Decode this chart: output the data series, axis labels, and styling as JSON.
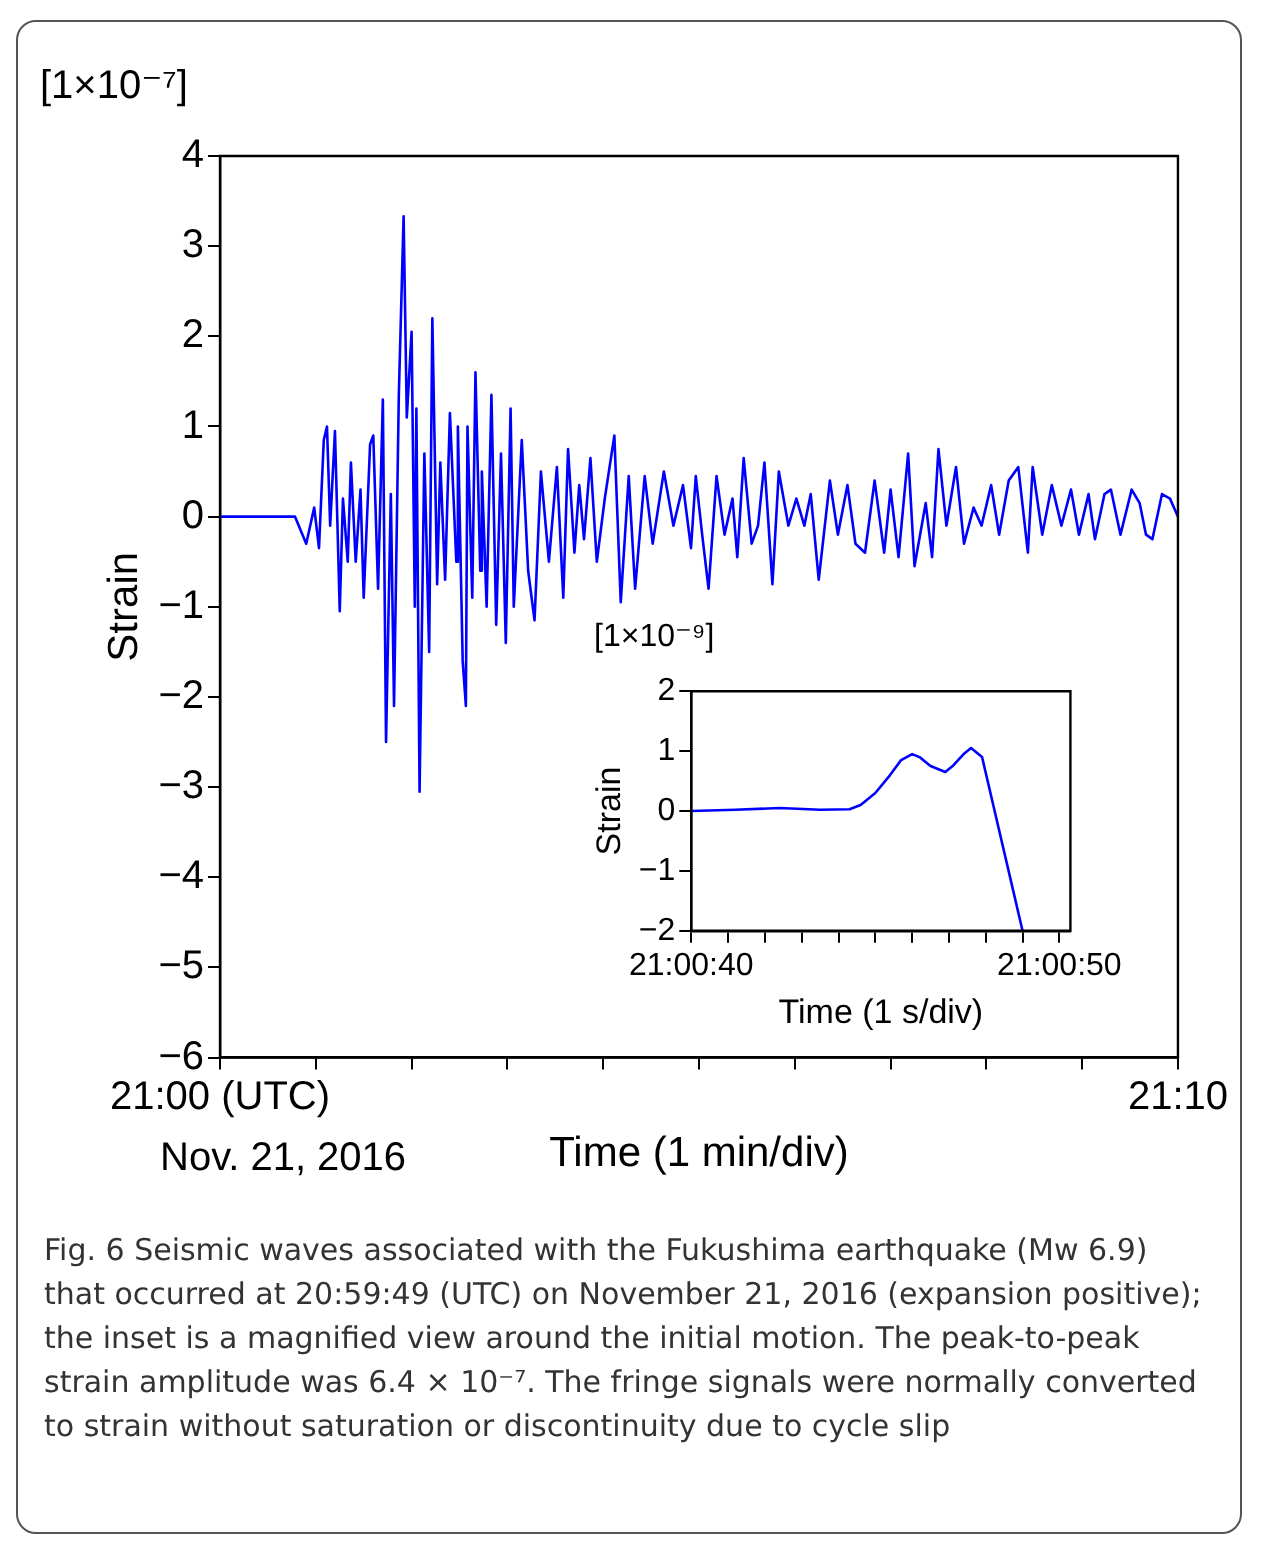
{
  "chart_data": [
    {
      "type": "line",
      "xlabel": "Time (1 min/div)",
      "ylabel": "Strain",
      "color": "#0000ff",
      "marker": "none",
      "annotations": [
        "[1×10⁻⁷]",
        "Nov. 21, 2016",
        "Fig. 6  Seismic waves associated with the Fukushima earthquake (Mw 6.9) that occurred at 20:59:49 (UTC) on November 21, 2016 (expansion positive); the inset is a magnified view around the initial motion. The peak-to-peak strain amplitude was 6.4 × 10⁻⁷. The fringe signals were normally converted to strain without saturation or discontinuity due to cycle slip"
      ],
      "xlim": [
        "2016-11-21T21:00",
        "2016-11-21T21:10"
      ],
      "xticks": [
        {
          "value": "2016-11-21T21:00",
          "label": "21:00 (UTC)"
        },
        {
          "value": "2016-11-21T21:01",
          "label": null
        },
        {
          "value": "2016-11-21T21:02",
          "label": null
        },
        {
          "value": "2016-11-21T21:03",
          "label": null
        },
        {
          "value": "2016-11-21T21:04",
          "label": null
        },
        {
          "value": "2016-11-21T21:05",
          "label": null
        },
        {
          "value": "2016-11-21T21:06",
          "label": null
        },
        {
          "value": "2016-11-21T21:07",
          "label": null
        },
        {
          "value": "2016-11-21T21:08",
          "label": null
        },
        {
          "value": "2016-11-21T21:09",
          "label": null
        },
        {
          "value": "2016-11-21T21:10",
          "label": "21:10"
        }
      ],
      "ylim": [
        -6,
        4
      ],
      "yticks": [
        -6,
        -5,
        -4,
        -3,
        -2,
        -1,
        0,
        1,
        2,
        3,
        4
      ],
      "x": [
        "2016-11-21T21:00:00",
        "2016-11-21T21:00:47",
        "2016-11-21T21:00:54",
        "2016-11-21T21:00:59",
        "2016-11-21T21:01:02",
        "2016-11-21T21:01:05",
        "2016-11-21T21:01:07",
        "2016-11-21T21:01:09",
        "2016-11-21T21:01:12",
        "2016-11-21T21:01:15",
        "2016-11-21T21:01:17",
        "2016-11-21T21:01:20",
        "2016-11-21T21:01:22",
        "2016-11-21T21:01:25",
        "2016-11-21T21:01:28",
        "2016-11-21T21:01:30",
        "2016-11-21T21:01:34",
        "2016-11-21T21:01:36",
        "2016-11-21T21:01:39",
        "2016-11-21T21:01:42",
        "2016-11-21T21:01:44",
        "2016-11-21T21:01:47",
        "2016-11-21T21:01:49",
        "2016-11-21T21:01:52",
        "2016-11-21T21:01:55",
        "2016-11-21T21:01:57",
        "2016-11-21T21:02:00",
        "2016-11-21T21:02:02",
        "2016-11-21T21:02:03",
        "2016-11-21T21:02:05",
        "2016-11-21T21:02:08",
        "2016-11-21T21:02:11",
        "2016-11-21T21:02:13",
        "2016-11-21T21:02:16",
        "2016-11-21T21:02:18",
        "2016-11-21T21:02:21",
        "2016-11-21T21:02:24",
        "2016-11-21T21:02:28",
        "2016-11-21T21:02:29",
        "2016-11-21T21:02:32",
        "2016-11-21T21:02:34",
        "2016-11-21T21:02:35",
        "2016-11-21T21:02:38",
        "2016-11-21T21:02:40",
        "2016-11-21T21:02:43",
        "2016-11-21T21:02:44",
        "2016-11-21T21:02:47",
        "2016-11-21T21:02:50",
        "2016-11-21T21:02:53",
        "2016-11-21T21:02:56",
        "2016-11-21T21:02:59",
        "2016-11-21T21:03:02",
        "2016-11-21T21:03:04",
        "2016-11-21T21:03:09",
        "2016-11-21T21:03:13",
        "2016-11-21T21:03:17",
        "2016-11-21T21:03:21",
        "2016-11-21T21:03:26",
        "2016-11-21T21:03:31",
        "2016-11-21T21:03:35",
        "2016-11-21T21:03:38",
        "2016-11-21T21:03:42",
        "2016-11-21T21:03:45",
        "2016-11-21T21:03:48",
        "2016-11-21T21:03:52",
        "2016-11-21T21:03:56",
        "2016-11-21T21:04:01",
        "2016-11-21T21:04:07",
        "2016-11-21T21:04:11",
        "2016-11-21T21:04:16",
        "2016-11-21T21:04:20",
        "2016-11-21T21:04:26",
        "2016-11-21T21:04:31",
        "2016-11-21T21:04:38",
        "2016-11-21T21:04:44",
        "2016-11-21T21:04:50",
        "2016-11-21T21:04:55",
        "2016-11-21T21:04:58",
        "2016-11-21T21:05:02",
        "2016-11-21T21:05:06",
        "2016-11-21T21:05:11",
        "2016-11-21T21:05:16",
        "2016-11-21T21:05:21",
        "2016-11-21T21:05:24",
        "2016-11-21T21:05:28",
        "2016-11-21T21:05:33",
        "2016-11-21T21:05:37",
        "2016-11-21T21:05:41",
        "2016-11-21T21:05:46",
        "2016-11-21T21:05:50",
        "2016-11-21T21:05:56",
        "2016-11-21T21:06:01",
        "2016-11-21T21:06:06",
        "2016-11-21T21:06:10",
        "2016-11-21T21:06:15",
        "2016-11-21T21:06:22",
        "2016-11-21T21:06:27",
        "2016-11-21T21:06:33",
        "2016-11-21T21:06:38",
        "2016-11-21T21:06:44",
        "2016-11-21T21:06:50",
        "2016-11-21T21:06:56",
        "2016-11-21T21:07:00",
        "2016-11-21T21:07:05",
        "2016-11-21T21:07:11",
        "2016-11-21T21:07:15",
        "2016-11-21T21:07:22",
        "2016-11-21T21:07:26",
        "2016-11-21T21:07:30",
        "2016-11-21T21:07:35",
        "2016-11-21T21:07:41",
        "2016-11-21T21:07:46",
        "2016-11-21T21:07:52",
        "2016-11-21T21:07:57",
        "2016-11-21T21:08:03",
        "2016-11-21T21:08:08",
        "2016-11-21T21:08:14",
        "2016-11-21T21:08:20",
        "2016-11-21T21:08:26",
        "2016-11-21T21:08:29",
        "2016-11-21T21:08:35",
        "2016-11-21T21:08:41",
        "2016-11-21T21:08:47",
        "2016-11-21T21:08:53",
        "2016-11-21T21:08:58",
        "2016-11-21T21:09:04",
        "2016-11-21T21:09:08",
        "2016-11-21T21:09:14",
        "2016-11-21T21:09:18",
        "2016-11-21T21:09:24",
        "2016-11-21T21:09:31",
        "2016-11-21T21:09:36",
        "2016-11-21T21:09:40",
        "2016-11-21T21:09:44",
        "2016-11-21T21:09:50",
        "2016-11-21T21:09:55",
        "2016-11-21T21:10:00"
      ],
      "values": [
        0,
        0,
        -0.3,
        0.1,
        -0.35,
        0.85,
        1.0,
        -0.1,
        0.95,
        -1.05,
        0.2,
        -0.5,
        0.6,
        -0.5,
        0.3,
        -0.9,
        0.8,
        0.9,
        -0.8,
        1.3,
        -2.5,
        0.25,
        -2.1,
        1.35,
        3.33,
        1.1,
        2.05,
        -1.0,
        1.2,
        -3.05,
        0.7,
        -1.5,
        2.2,
        -0.75,
        0.6,
        -0.7,
        1.15,
        -0.5,
        1.0,
        -1.6,
        -2.1,
        1.0,
        -0.9,
        1.6,
        -0.6,
        0.5,
        -1.0,
        1.35,
        -1.2,
        0.7,
        -1.4,
        1.2,
        -1.0,
        0.85,
        -0.6,
        -1.15,
        0.5,
        -0.5,
        0.55,
        -0.9,
        0.75,
        -0.4,
        0.35,
        -0.25,
        0.65,
        -0.5,
        0.2,
        0.9,
        -0.95,
        0.45,
        -0.8,
        0.45,
        -0.3,
        0.5,
        -0.1,
        0.35,
        -0.35,
        0.45,
        -0.2,
        -0.8,
        0.45,
        -0.2,
        0.2,
        -0.45,
        0.65,
        -0.3,
        -0.1,
        0.6,
        -0.75,
        0.5,
        -0.1,
        0.2,
        -0.1,
        0.25,
        -0.7,
        0.4,
        -0.2,
        0.35,
        -0.3,
        -0.4,
        0.4,
        -0.4,
        0.3,
        -0.45,
        0.7,
        -0.55,
        0.15,
        -0.45,
        0.75,
        -0.1,
        0.55,
        -0.3,
        0.1,
        -0.1,
        0.35,
        -0.2,
        0.4,
        0.55,
        -0.4,
        0.55,
        -0.2,
        0.35,
        -0.1,
        0.3,
        -0.2,
        0.25,
        -0.25,
        0.25,
        0.3,
        -0.2,
        0.3,
        0.15,
        -0.2,
        -0.25,
        0.25,
        0.2,
        0.0
      ]
    },
    {
      "type": "line",
      "xlabel": "Time (1 s/div)",
      "ylabel": "Strain",
      "color": "#0000ff",
      "marker": "none",
      "annotations": [
        "[1×10⁻⁹]"
      ],
      "xlim": [
        "2016-11-21T21:00:40",
        "2016-11-21T21:00:50.3"
      ],
      "xticks": [
        {
          "value": "2016-11-21T21:00:40",
          "label": "21:00:40"
        },
        {
          "value": "2016-11-21T21:00:41",
          "label": null
        },
        {
          "value": "2016-11-21T21:00:42",
          "label": null
        },
        {
          "value": "2016-11-21T21:00:43",
          "label": null
        },
        {
          "value": "2016-11-21T21:00:44",
          "label": null
        },
        {
          "value": "2016-11-21T21:00:45",
          "label": null
        },
        {
          "value": "2016-11-21T21:00:46",
          "label": null
        },
        {
          "value": "2016-11-21T21:00:47",
          "label": null
        },
        {
          "value": "2016-11-21T21:00:48",
          "label": null
        },
        {
          "value": "2016-11-21T21:00:49",
          "label": null
        },
        {
          "value": "2016-11-21T21:00:50",
          "label": "21:00:50"
        }
      ],
      "ylim": [
        -2,
        2
      ],
      "yticks": [
        -2,
        -1,
        0,
        1,
        2
      ],
      "x": [
        "2016-11-21T21:00:40.0",
        "2016-11-21T21:00:41.2",
        "2016-11-21T21:00:42.4",
        "2016-11-21T21:00:43.5",
        "2016-11-21T21:00:44.3",
        "2016-11-21T21:00:44.6",
        "2016-11-21T21:00:45.0",
        "2016-11-21T21:00:45.4",
        "2016-11-21T21:00:45.7",
        "2016-11-21T21:00:46.0",
        "2016-11-21T21:00:46.2",
        "2016-11-21T21:00:46.5",
        "2016-11-21T21:00:46.9",
        "2016-11-21T21:00:47.1",
        "2016-11-21T21:00:47.4",
        "2016-11-21T21:00:47.6",
        "2016-11-21T21:00:47.9",
        "2016-11-21T21:00:49.0"
      ],
      "values": [
        0,
        0.02,
        0.05,
        0.02,
        0.03,
        0.1,
        0.3,
        0.6,
        0.85,
        0.95,
        0.9,
        0.75,
        0.65,
        0.75,
        0.95,
        1.05,
        0.9,
        -2.0
      ]
    }
  ]
}
